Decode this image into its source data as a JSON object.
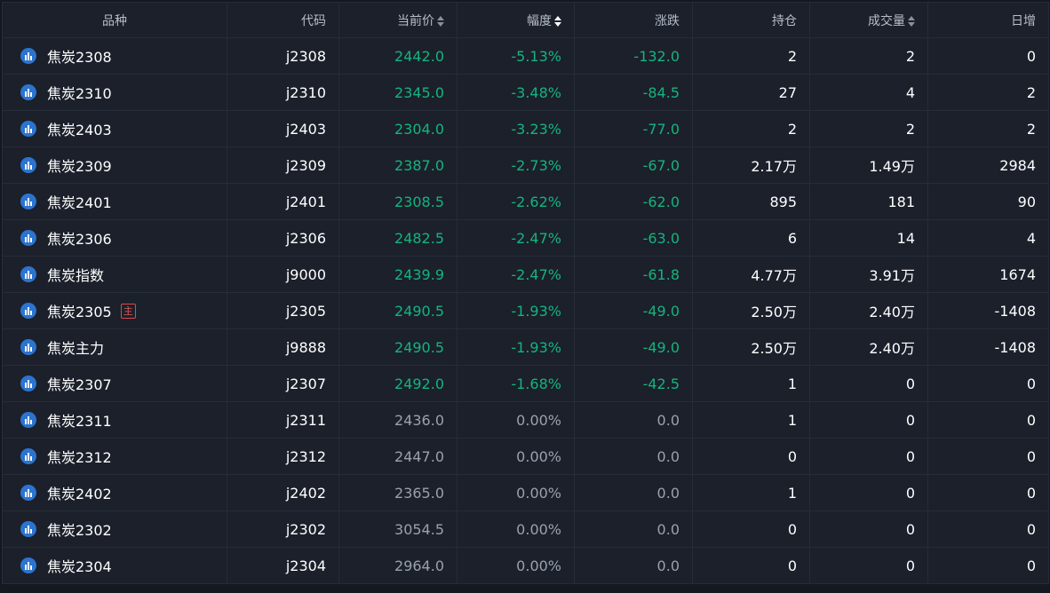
{
  "colors": {
    "background": "#1b202b",
    "down_green": "#16b37d",
    "flat_gray": "#9aa1ad",
    "icon_blue": "#2b74cf",
    "badge_red": "#e35757"
  },
  "header": {
    "name": "品种",
    "code": "代码",
    "price": "当前价",
    "pct": "幅度",
    "change": "涨跌",
    "open_interest": "持仓",
    "volume": "成交量",
    "daily_change": "日增"
  },
  "rows": [
    {
      "name": "焦炭2308",
      "badge": "",
      "code": "j2308",
      "price": "2442.0",
      "pct": "-5.13%",
      "change": "-132.0",
      "oi": "2",
      "vol": "2",
      "day": "0",
      "trend": "down"
    },
    {
      "name": "焦炭2310",
      "badge": "",
      "code": "j2310",
      "price": "2345.0",
      "pct": "-3.48%",
      "change": "-84.5",
      "oi": "27",
      "vol": "4",
      "day": "2",
      "trend": "down"
    },
    {
      "name": "焦炭2403",
      "badge": "",
      "code": "j2403",
      "price": "2304.0",
      "pct": "-3.23%",
      "change": "-77.0",
      "oi": "2",
      "vol": "2",
      "day": "2",
      "trend": "down"
    },
    {
      "name": "焦炭2309",
      "badge": "",
      "code": "j2309",
      "price": "2387.0",
      "pct": "-2.73%",
      "change": "-67.0",
      "oi": "2.17万",
      "vol": "1.49万",
      "day": "2984",
      "trend": "down"
    },
    {
      "name": "焦炭2401",
      "badge": "",
      "code": "j2401",
      "price": "2308.5",
      "pct": "-2.62%",
      "change": "-62.0",
      "oi": "895",
      "vol": "181",
      "day": "90",
      "trend": "down"
    },
    {
      "name": "焦炭2306",
      "badge": "",
      "code": "j2306",
      "price": "2482.5",
      "pct": "-2.47%",
      "change": "-63.0",
      "oi": "6",
      "vol": "14",
      "day": "4",
      "trend": "down"
    },
    {
      "name": "焦炭指数",
      "badge": "",
      "code": "j9000",
      "price": "2439.9",
      "pct": "-2.47%",
      "change": "-61.8",
      "oi": "4.77万",
      "vol": "3.91万",
      "day": "1674",
      "trend": "down"
    },
    {
      "name": "焦炭2305",
      "badge": "主",
      "code": "j2305",
      "price": "2490.5",
      "pct": "-1.93%",
      "change": "-49.0",
      "oi": "2.50万",
      "vol": "2.40万",
      "day": "-1408",
      "trend": "down"
    },
    {
      "name": "焦炭主力",
      "badge": "",
      "code": "j9888",
      "price": "2490.5",
      "pct": "-1.93%",
      "change": "-49.0",
      "oi": "2.50万",
      "vol": "2.40万",
      "day": "-1408",
      "trend": "down"
    },
    {
      "name": "焦炭2307",
      "badge": "",
      "code": "j2307",
      "price": "2492.0",
      "pct": "-1.68%",
      "change": "-42.5",
      "oi": "1",
      "vol": "0",
      "day": "0",
      "trend": "down"
    },
    {
      "name": "焦炭2311",
      "badge": "",
      "code": "j2311",
      "price": "2436.0",
      "pct": "0.00%",
      "change": "0.0",
      "oi": "1",
      "vol": "0",
      "day": "0",
      "trend": "flat"
    },
    {
      "name": "焦炭2312",
      "badge": "",
      "code": "j2312",
      "price": "2447.0",
      "pct": "0.00%",
      "change": "0.0",
      "oi": "0",
      "vol": "0",
      "day": "0",
      "trend": "flat"
    },
    {
      "name": "焦炭2402",
      "badge": "",
      "code": "j2402",
      "price": "2365.0",
      "pct": "0.00%",
      "change": "0.0",
      "oi": "1",
      "vol": "0",
      "day": "0",
      "trend": "flat"
    },
    {
      "name": "焦炭2302",
      "badge": "",
      "code": "j2302",
      "price": "3054.5",
      "pct": "0.00%",
      "change": "0.0",
      "oi": "0",
      "vol": "0",
      "day": "0",
      "trend": "flat"
    },
    {
      "name": "焦炭2304",
      "badge": "",
      "code": "j2304",
      "price": "2964.0",
      "pct": "0.00%",
      "change": "0.0",
      "oi": "0",
      "vol": "0",
      "day": "0",
      "trend": "flat"
    }
  ]
}
